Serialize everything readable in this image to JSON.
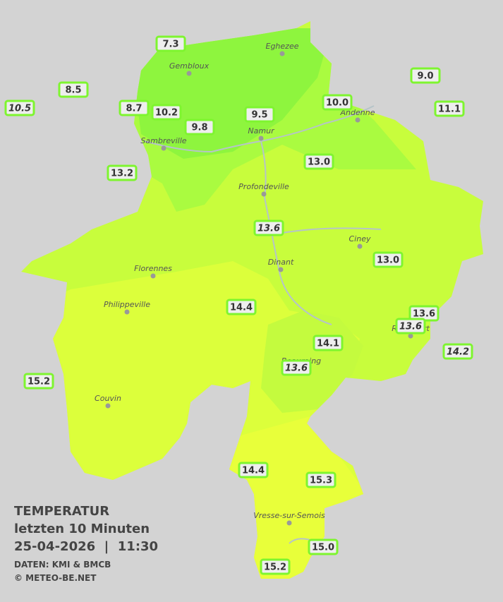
{
  "legend": {
    "title": "TEMPERATUR",
    "subtitle": "letzten 10 Minuten",
    "timestamp": "25-04-2026  |  11:30",
    "source": "DATEN: KMI & BMCB",
    "credit": "© METEO-BE.NET"
  },
  "cities": [
    "Eghezee",
    "Gembloux",
    "Andenne",
    "Namur",
    "Sambreville",
    "Profondeville",
    "Ciney",
    "Dinant",
    "Florennes",
    "Philippeville",
    "Couvin",
    "Beauraing",
    "Rochefort",
    "Vresse-sur-Semois"
  ],
  "stations": [
    {
      "label": "7.3"
    },
    {
      "label": "8.5"
    },
    {
      "label": "10.5",
      "italic": true
    },
    {
      "label": "8.7"
    },
    {
      "label": "10.2"
    },
    {
      "label": "9.8"
    },
    {
      "label": "9.5"
    },
    {
      "label": "10.0"
    },
    {
      "label": "9.0"
    },
    {
      "label": "11.1"
    },
    {
      "label": "13.2"
    },
    {
      "label": "13.0"
    },
    {
      "label": "13.6",
      "italic": true
    },
    {
      "label": "13.0"
    },
    {
      "label": "14.4"
    },
    {
      "label": "13.6"
    },
    {
      "label": "13.6",
      "italic": true
    },
    {
      "label": "14.1"
    },
    {
      "label": "14.2",
      "italic": true
    },
    {
      "label": "13.6",
      "italic": true
    },
    {
      "label": "15.2"
    },
    {
      "label": "14.4"
    },
    {
      "label": "15.3"
    },
    {
      "label": "15.0"
    },
    {
      "label": "15.2"
    }
  ]
}
